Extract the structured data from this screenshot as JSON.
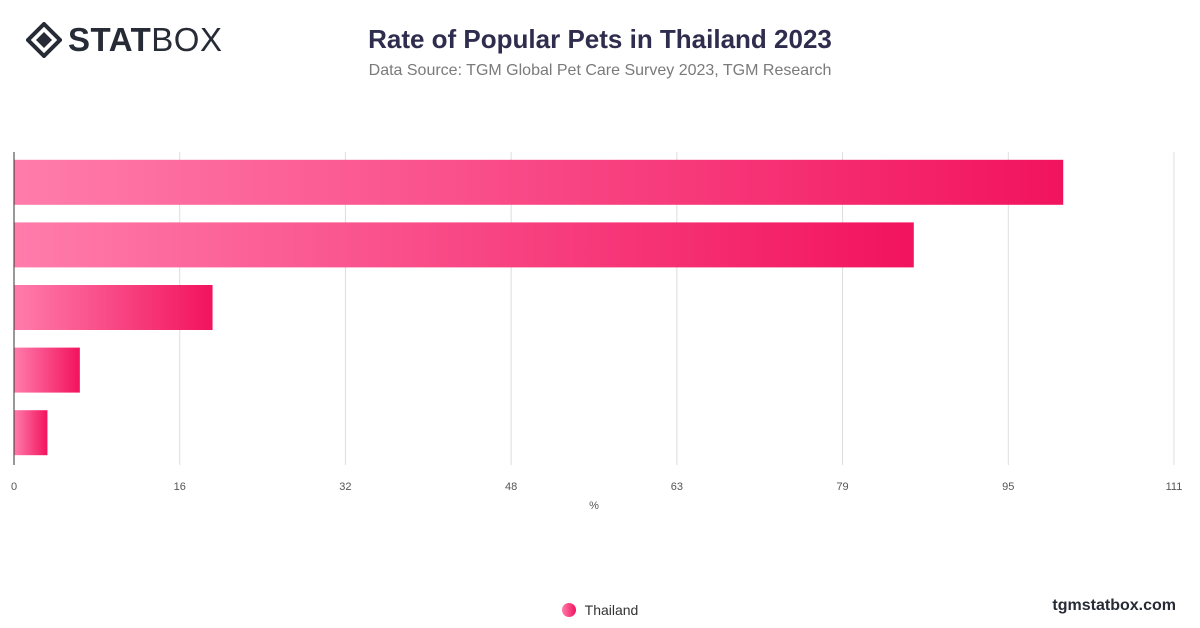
{
  "brand": {
    "logo_bold": "STAT",
    "logo_light": "BOX",
    "footer": "tgmstatbox.com"
  },
  "chart_data": {
    "type": "bar",
    "orientation": "horizontal",
    "title": "Rate of Popular Pets in Thailand 2023",
    "subtitle": "Data Source: TGM Global Pet Care Survey 2023, TGM Research",
    "xlabel": "%",
    "ylabel": "",
    "xlim": [
      0,
      111
    ],
    "x_ticks": [
      "0",
      "16",
      "32",
      "48",
      "63",
      "79",
      "95",
      "111"
    ],
    "categories": [
      "",
      "",
      "",
      "",
      ""
    ],
    "series": [
      {
        "name": "Thailand",
        "values": [
          100.4,
          86.1,
          19.0,
          6.3,
          3.2
        ]
      }
    ],
    "grid": true,
    "legend_position": "bottom",
    "colors": {
      "bar_start": "#ff7cab",
      "bar_end": "#f2135e",
      "grid": "#dddddd",
      "axis": "#333333"
    }
  }
}
